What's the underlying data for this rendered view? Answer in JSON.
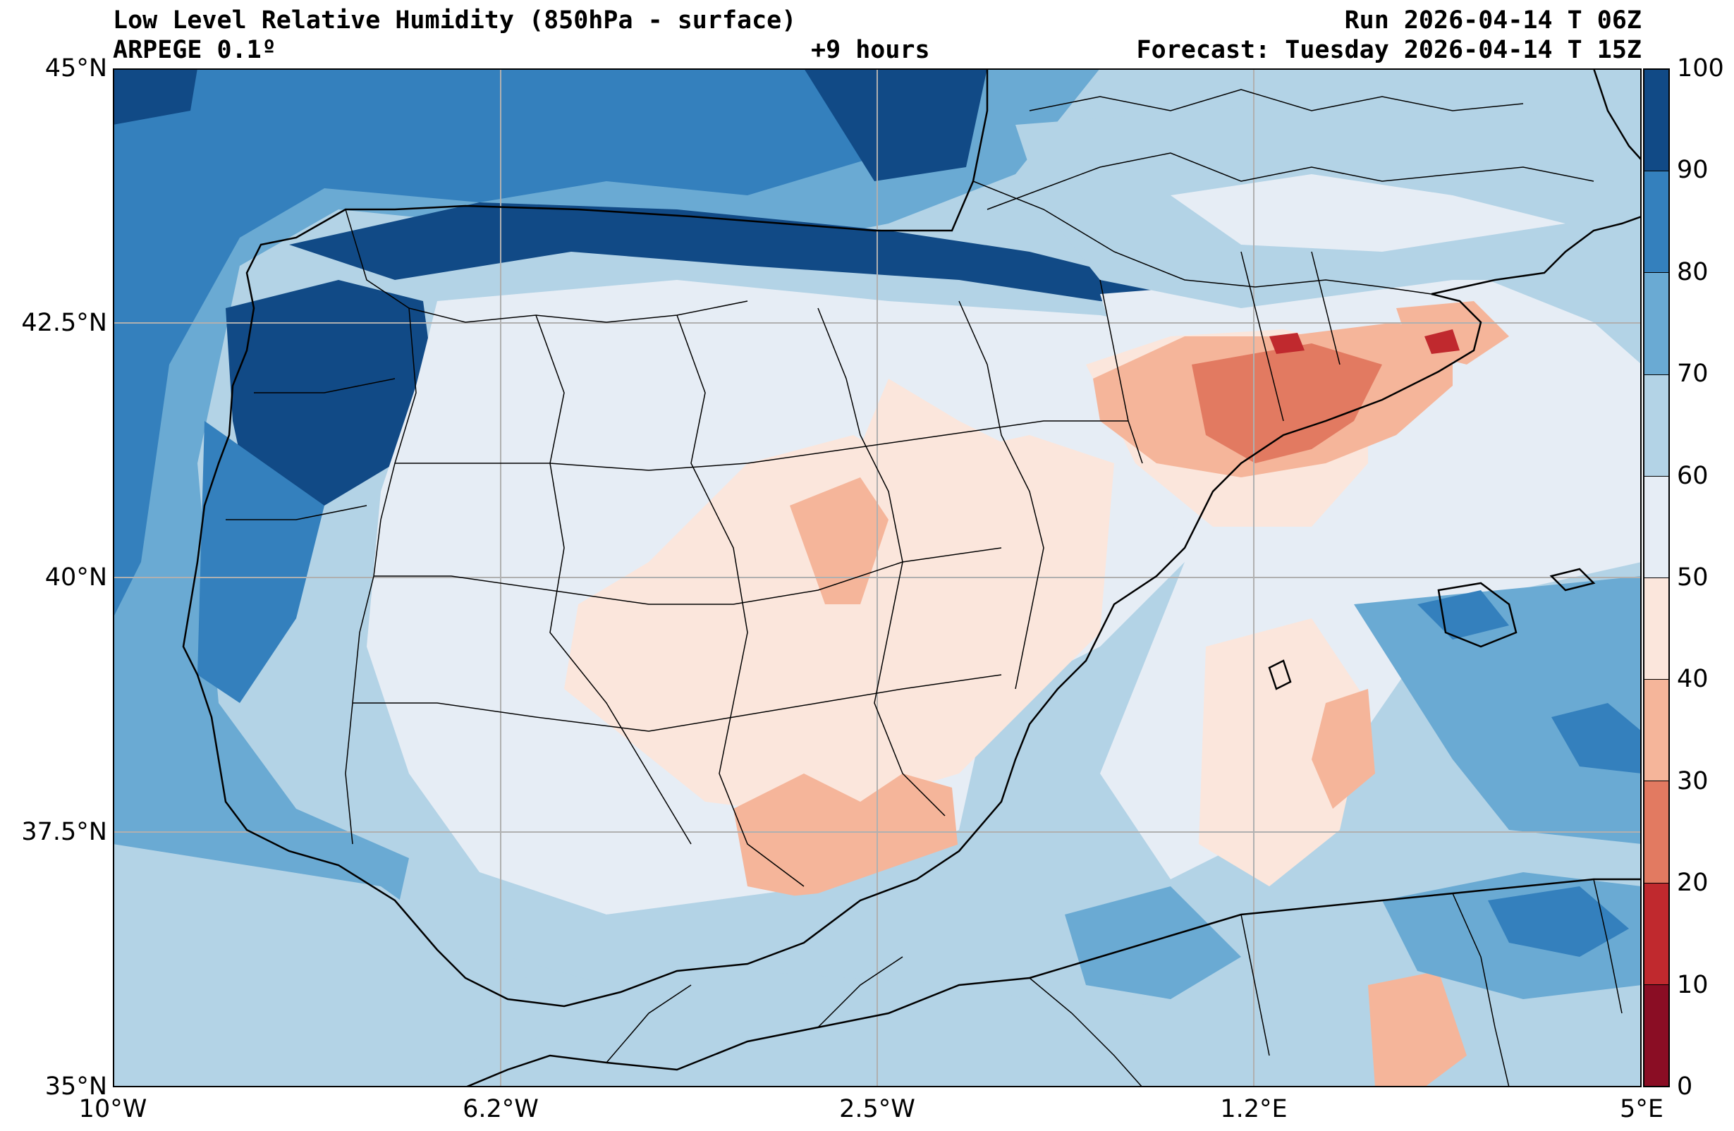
{
  "header": {
    "title": "Low Level Relative Humidity (850hPa - surface)",
    "model": "ARPEGE 0.1º",
    "lead_time": "+9 hours",
    "run": "Run 2026-04-14 T 06Z",
    "forecast": "Forecast: Tuesday 2026-04-14 T 15Z"
  },
  "map": {
    "lat_labels": [
      "45°N",
      "42.5°N",
      "40°N",
      "37.5°N",
      "35°N"
    ],
    "lon_labels": [
      "10°W",
      "6.2°W",
      "2.5°W",
      "1.2°E",
      "5°E"
    ],
    "extent": {
      "lon_min": -10,
      "lon_max": 5,
      "lat_min": 35,
      "lat_max": 45
    }
  },
  "colorbar": {
    "labels": [
      "100",
      "90",
      "80",
      "70",
      "60",
      "50",
      "40",
      "30",
      "20",
      "10",
      "0"
    ],
    "levels": [
      0,
      10,
      20,
      30,
      40,
      50,
      60,
      70,
      80,
      90,
      100
    ],
    "colors": [
      "#8a0d24",
      "#c0292e",
      "#e27a61",
      "#f5b59a",
      "#fbe6dc",
      "#e6edf5",
      "#b3d3e6",
      "#6aaad3",
      "#3480bd",
      "#114a86"
    ]
  }
}
